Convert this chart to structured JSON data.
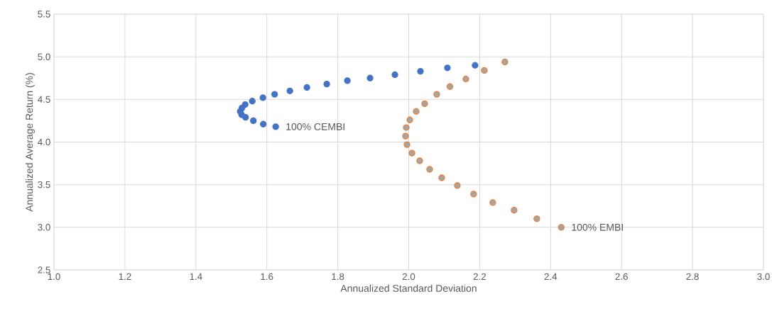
{
  "chart_data": {
    "type": "scatter",
    "xlabel": "Annualized Standard Deviation",
    "ylabel": "Annualized Average Return (%)",
    "xlim": [
      1.0,
      3.0
    ],
    "xticks": [
      {
        "value": 1.0,
        "label": "1.0"
      },
      1.2,
      1.4,
      1.6,
      1.8,
      {
        "value": 2.0,
        "label": "2.0"
      },
      2.2,
      2.4,
      2.6,
      2.8,
      {
        "value": 3.0,
        "label": "3.0"
      }
    ],
    "ylim": [
      2.5,
      5.5
    ],
    "yticks": [
      2.5,
      {
        "value": 3.0,
        "label": "3.0"
      },
      3.5,
      {
        "value": 4.0,
        "label": "4.0"
      },
      4.5,
      {
        "value": 5.0,
        "label": "5.0"
      },
      5.5
    ],
    "grid": true,
    "series": [
      {
        "color": "#4472c4",
        "x": [
          1.625,
          1.59,
          1.562,
          1.54,
          1.529,
          1.525,
          1.53,
          1.539,
          1.559,
          1.589,
          1.622,
          1.665,
          1.713,
          1.769,
          1.827,
          1.891,
          1.961,
          2.033,
          2.109,
          2.187
        ],
        "values": [
          4.18,
          4.21,
          4.25,
          4.29,
          4.32,
          4.36,
          4.4,
          4.44,
          4.48,
          4.52,
          4.56,
          4.6,
          4.64,
          4.68,
          4.72,
          4.75,
          4.79,
          4.83,
          4.87,
          4.9
        ]
      },
      {
        "color": "#ed7d31",
        "x": [
          2.43,
          2.361,
          2.297,
          2.237,
          2.183,
          2.137,
          2.093,
          2.059,
          2.031,
          2.009,
          1.995,
          1.991,
          1.993,
          2.003,
          2.021,
          2.045,
          2.079,
          2.116,
          2.161,
          2.213,
          2.271
        ],
        "values": [
          3.0,
          3.1,
          3.2,
          3.29,
          3.39,
          3.49,
          3.58,
          3.68,
          3.78,
          3.87,
          3.97,
          4.07,
          4.17,
          4.26,
          4.36,
          4.45,
          4.56,
          4.65,
          4.74,
          4.84,
          4.94
        ]
      }
    ],
    "annotations": [
      {
        "text": "100% CEMBI",
        "x": 1.625,
        "y": 4.18
      },
      {
        "text": "100% EMBI",
        "x": 2.43,
        "y": 3.0
      }
    ]
  }
}
